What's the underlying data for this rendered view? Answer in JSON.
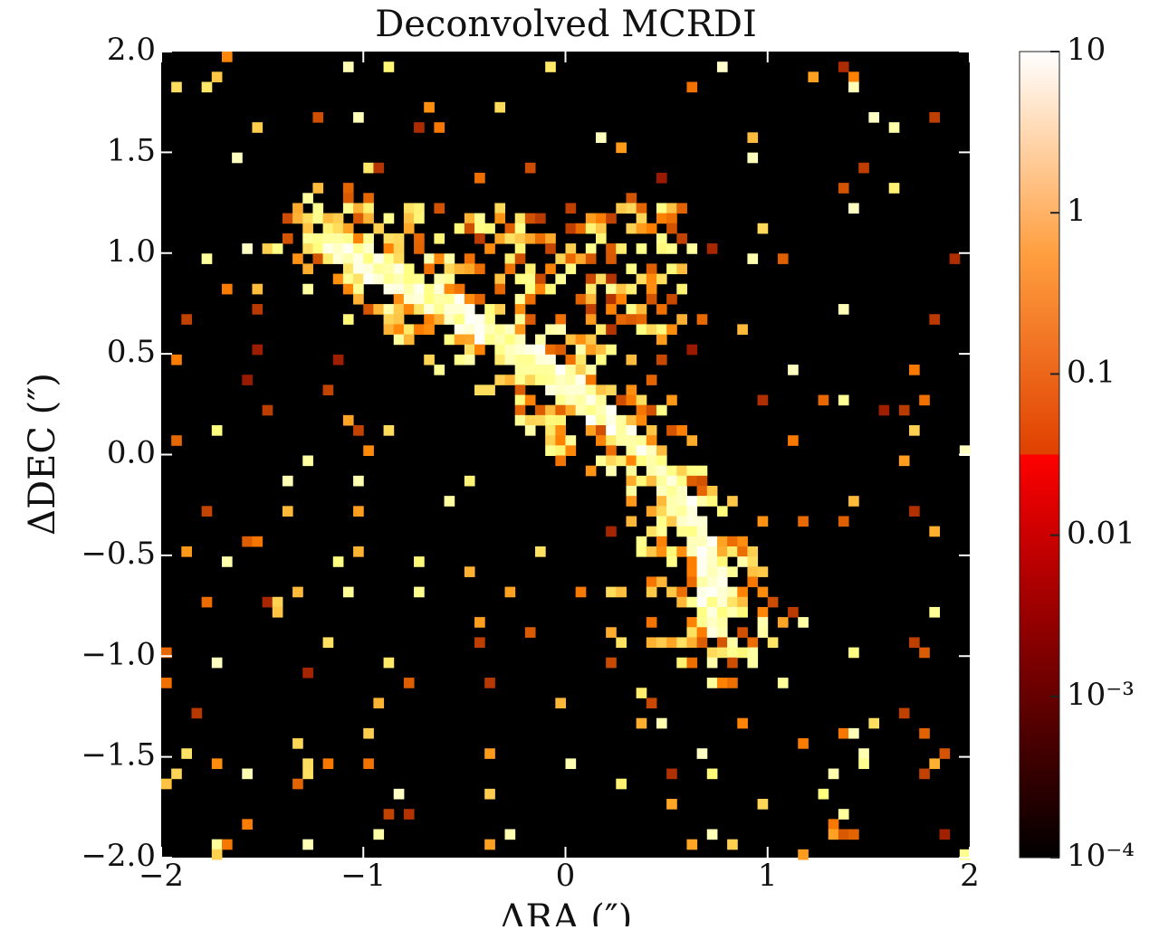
{
  "chart_data": {
    "type": "heatmap",
    "title": "Deconvolved MCRDI",
    "x_label": "ΔRA (″)",
    "y_label": "ΔDEC (″)",
    "xlim": [
      -2,
      2
    ],
    "xticks": [
      {
        "value": -2,
        "label": "−2"
      },
      {
        "value": -1,
        "label": "−1"
      },
      0,
      1,
      2
    ],
    "ylim": [
      -2,
      2
    ],
    "yticks": [
      {
        "value": 2,
        "label": "2.0"
      },
      1.5,
      {
        "value": 1,
        "label": "1.0"
      },
      0.5,
      {
        "value": 0,
        "label": "0.0"
      },
      {
        "value": -0.5,
        "label": "−0.5"
      },
      {
        "value": -1,
        "label": "−1.0"
      },
      {
        "value": -1.5,
        "label": "−1.5"
      },
      {
        "value": -2,
        "label": "−2.0"
      }
    ],
    "colormap": "afmhot",
    "colorbar_scale": "log",
    "clim": [
      0.0001,
      10
    ],
    "colorbar_ticks": [
      10,
      1,
      0.1,
      0.01,
      {
        "value": 0.001,
        "label": "10⁻³"
      },
      {
        "value": 0.0001,
        "label": "10⁻⁴"
      }
    ]
  }
}
